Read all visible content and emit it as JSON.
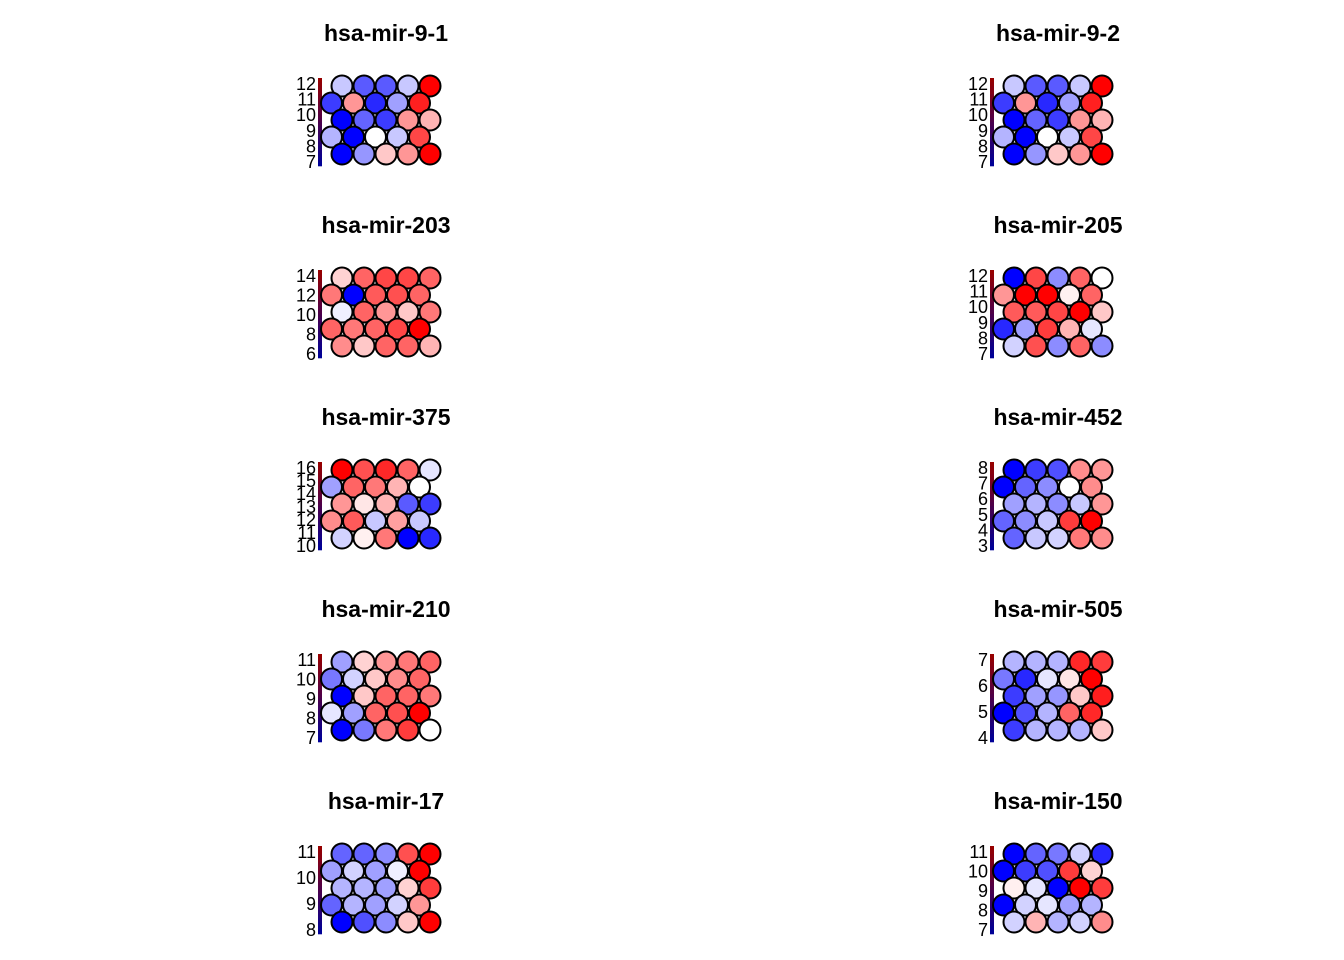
{
  "chart_data": [
    {
      "type": "heatmap",
      "title": "hsa-mir-9-1",
      "scale_ticks": [
        "7",
        "8",
        "9",
        "10",
        "11",
        "12"
      ],
      "colors": [
        [
          "#c8c8ff",
          "#5a5aff",
          "#5a5aff",
          "#c8c8ff",
          "#ff0000"
        ],
        [
          "#3c3cff",
          "#ff9696",
          "#2828ff",
          "#a0a0ff",
          "#ff2020"
        ],
        [
          "#0000ff",
          "#6464ff",
          "#3c3cff",
          "#ff9696",
          "#ffb4b4"
        ],
        [
          "#b4b4ff",
          "#0000ff",
          "#ffffff",
          "#c8c8ff",
          "#ff4646"
        ],
        [
          "#0000ff",
          "#9696ff",
          "#ffc8c8",
          "#ff9696",
          "#ff0000"
        ]
      ]
    },
    {
      "type": "heatmap",
      "title": "hsa-mir-9-2",
      "scale_ticks": [
        "7",
        "8",
        "9",
        "10",
        "11",
        "12"
      ],
      "colors": [
        [
          "#c8c8ff",
          "#5a5aff",
          "#5a5aff",
          "#c8c8ff",
          "#ff0000"
        ],
        [
          "#3c3cff",
          "#ff9696",
          "#2828ff",
          "#a0a0ff",
          "#ff2020"
        ],
        [
          "#0000ff",
          "#6464ff",
          "#3c3cff",
          "#ff9696",
          "#ffb4b4"
        ],
        [
          "#b4b4ff",
          "#0000ff",
          "#ffffff",
          "#c8c8ff",
          "#ff4646"
        ],
        [
          "#0000ff",
          "#9696ff",
          "#ffc8c8",
          "#ff9696",
          "#ff0000"
        ]
      ]
    },
    {
      "type": "heatmap",
      "title": "hsa-mir-203",
      "scale_ticks": [
        "6",
        "8",
        "10",
        "12",
        "14"
      ],
      "colors": [
        [
          "#ffd2d2",
          "#ff6464",
          "#ff4646",
          "#ff4646",
          "#ff6464"
        ],
        [
          "#ff7878",
          "#0000ff",
          "#ff5a5a",
          "#ff5050",
          "#ff6464"
        ],
        [
          "#f0f0ff",
          "#ff6464",
          "#ff9696",
          "#ffc8c8",
          "#ff7878"
        ],
        [
          "#ff6464",
          "#ff7878",
          "#ff6464",
          "#ff4646",
          "#ff0000"
        ],
        [
          "#ff8c8c",
          "#ffc8c8",
          "#ff6464",
          "#ff6464",
          "#ffb4b4"
        ]
      ]
    },
    {
      "type": "heatmap",
      "title": "hsa-mir-205",
      "scale_ticks": [
        "7",
        "8",
        "9",
        "10",
        "11",
        "12"
      ],
      "colors": [
        [
          "#0000ff",
          "#ff4646",
          "#8c8cff",
          "#ff6464",
          "#ffffff"
        ],
        [
          "#ff9696",
          "#ff0000",
          "#ff0000",
          "#fff0f0",
          "#ff6464"
        ],
        [
          "#ff5a5a",
          "#ff5a5a",
          "#ff4646",
          "#ff0000",
          "#ffc8c8"
        ],
        [
          "#2828ff",
          "#a0a0ff",
          "#ff3c3c",
          "#ffb4b4",
          "#e6e6ff"
        ],
        [
          "#d2d2ff",
          "#ff5050",
          "#8c8cff",
          "#ff6464",
          "#8c8cff"
        ]
      ]
    },
    {
      "type": "heatmap",
      "title": "hsa-mir-375",
      "scale_ticks": [
        "10",
        "11",
        "12",
        "13",
        "14",
        "15",
        "16"
      ],
      "colors": [
        [
          "#ff0000",
          "#ff5050",
          "#ff2828",
          "#ff6464",
          "#e6e6ff"
        ],
        [
          "#a0a0ff",
          "#ff6464",
          "#ff7878",
          "#ffb4b4",
          "#ffffff"
        ],
        [
          "#ff9696",
          "#ffe6e6",
          "#ffb4b4",
          "#5a5aff",
          "#3c3cff"
        ],
        [
          "#ff8c8c",
          "#ff5a5a",
          "#c8c8ff",
          "#ffa0a0",
          "#c8c8ff"
        ],
        [
          "#d2d2ff",
          "#fff0f0",
          "#ff7878",
          "#0000ff",
          "#2828ff"
        ]
      ]
    },
    {
      "type": "heatmap",
      "title": "hsa-mir-452",
      "scale_ticks": [
        "3",
        "4",
        "5",
        "6",
        "7",
        "8"
      ],
      "colors": [
        [
          "#0000ff",
          "#3c3cff",
          "#5050ff",
          "#ff8c8c",
          "#ff9696"
        ],
        [
          "#0000ff",
          "#6464ff",
          "#8c8cff",
          "#ffffff",
          "#ff8c8c"
        ],
        [
          "#a0a0ff",
          "#b4b4ff",
          "#8c8cff",
          "#c8c8ff",
          "#ff9696"
        ],
        [
          "#6464ff",
          "#8c8cff",
          "#c8c8ff",
          "#ff3c3c",
          "#ff0000"
        ],
        [
          "#6464ff",
          "#c8c8ff",
          "#d2d2ff",
          "#ff7878",
          "#ff8c8c"
        ]
      ]
    },
    {
      "type": "heatmap",
      "title": "hsa-mir-210",
      "scale_ticks": [
        "7",
        "8",
        "9",
        "10",
        "11"
      ],
      "colors": [
        [
          "#a0a0ff",
          "#ffd2d2",
          "#ff9696",
          "#ff7878",
          "#ff6464"
        ],
        [
          "#7878ff",
          "#d2d2ff",
          "#ffc8c8",
          "#ff8c8c",
          "#ff6464"
        ],
        [
          "#0000ff",
          "#ffc8c8",
          "#ff6464",
          "#ff6464",
          "#ff7878"
        ],
        [
          "#e6e6ff",
          "#a0a0ff",
          "#ff6464",
          "#ff5050",
          "#ff0000"
        ],
        [
          "#0000ff",
          "#7878ff",
          "#ff7878",
          "#ff3c3c",
          "#ffffff"
        ]
      ]
    },
    {
      "type": "heatmap",
      "title": "hsa-mir-505",
      "scale_ticks": [
        "4",
        "5",
        "6",
        "7"
      ],
      "colors": [
        [
          "#b4b4ff",
          "#b4b4ff",
          "#b4b4ff",
          "#ff2828",
          "#ff3c3c"
        ],
        [
          "#7878ff",
          "#2828ff",
          "#e6e6ff",
          "#ffe6e6",
          "#ff0000"
        ],
        [
          "#3c3cff",
          "#a0a0ff",
          "#9696ff",
          "#ffc8c8",
          "#ff1e1e"
        ],
        [
          "#0000ff",
          "#5050ff",
          "#b4b4ff",
          "#ff6464",
          "#ff2828"
        ],
        [
          "#3c3cff",
          "#b4b4ff",
          "#b4b4ff",
          "#b4b4ff",
          "#ffc8c8"
        ]
      ]
    },
    {
      "type": "heatmap",
      "title": "hsa-mir-17",
      "scale_ticks": [
        "8",
        "9",
        "10",
        "11"
      ],
      "colors": [
        [
          "#6464ff",
          "#6464ff",
          "#8c8cff",
          "#ff5050",
          "#ff0000"
        ],
        [
          "#a0a0ff",
          "#d2d2ff",
          "#a0a0ff",
          "#f0f0ff",
          "#ff0000"
        ],
        [
          "#b4b4ff",
          "#b4b4ff",
          "#a0a0ff",
          "#ffd2d2",
          "#ff3c3c"
        ],
        [
          "#6464ff",
          "#b4b4ff",
          "#a0a0ff",
          "#d2d2ff",
          "#ff9696"
        ],
        [
          "#0000ff",
          "#5050ff",
          "#8c8cff",
          "#ffc8c8",
          "#ff0000"
        ]
      ]
    },
    {
      "type": "heatmap",
      "title": "hsa-mir-150",
      "scale_ticks": [
        "7",
        "8",
        "9",
        "10",
        "11"
      ],
      "colors": [
        [
          "#0000ff",
          "#6464ff",
          "#7878ff",
          "#d2d2ff",
          "#2828ff"
        ],
        [
          "#0000ff",
          "#3c3cff",
          "#5050ff",
          "#ff3c3c",
          "#ffd2d2"
        ],
        [
          "#fff0f0",
          "#e6e6ff",
          "#0000ff",
          "#ff0000",
          "#ff3c3c"
        ],
        [
          "#0000ff",
          "#d2d2ff",
          "#e6e6ff",
          "#a0a0ff",
          "#b4b4ff"
        ],
        [
          "#d2d2ff",
          "#ffb4b4",
          "#b4b4ff",
          "#d2d2ff",
          "#ff8c8c"
        ]
      ]
    }
  ]
}
